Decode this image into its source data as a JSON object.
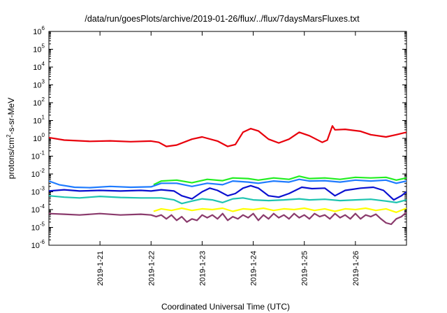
{
  "chart_data": {
    "type": "line",
    "title": "/data/run/goesPlots/archive/2019-01-26/flux/../flux/7daysMarsFluxes.txt",
    "xlabel": "Coordinated Universal Time (UTC)",
    "ylabel_parts": [
      "protons/cm",
      "2",
      "-s-sr-MeV"
    ],
    "y_scale": "log",
    "ylim": [
      1e-06,
      1000000.0
    ],
    "xlim": [
      20.0,
      27.0
    ],
    "y_tick_exponents": [
      -6,
      -5,
      -4,
      -3,
      -2,
      -1,
      0,
      1,
      2,
      3,
      4,
      5,
      6
    ],
    "y_tick_base": "10",
    "x_ticks": [
      {
        "x": 21,
        "label": "2019-1-21"
      },
      {
        "x": 22,
        "label": "2019-1-22"
      },
      {
        "x": 23,
        "label": "2019-1-23"
      },
      {
        "x": 24,
        "label": "2019-1-24"
      },
      {
        "x": 25,
        "label": "2019-1-25"
      },
      {
        "x": 26,
        "label": "2019-1-26"
      }
    ],
    "grid": false,
    "series": [
      {
        "color": "#e8000b",
        "points": [
          [
            20.0,
            1.1
          ],
          [
            20.3,
            0.8
          ],
          [
            20.8,
            0.68
          ],
          [
            21.2,
            0.72
          ],
          [
            21.6,
            0.65
          ],
          [
            22.0,
            0.7
          ],
          [
            22.15,
            0.6
          ],
          [
            22.3,
            0.35
          ],
          [
            22.5,
            0.42
          ],
          [
            22.8,
            0.9
          ],
          [
            23.0,
            1.2
          ],
          [
            23.3,
            0.7
          ],
          [
            23.5,
            0.35
          ],
          [
            23.65,
            0.45
          ],
          [
            23.8,
            2.2
          ],
          [
            23.95,
            3.5
          ],
          [
            24.1,
            2.6
          ],
          [
            24.3,
            0.9
          ],
          [
            24.5,
            0.55
          ],
          [
            24.7,
            0.9
          ],
          [
            24.9,
            2.2
          ],
          [
            25.1,
            1.4
          ],
          [
            25.35,
            0.6
          ],
          [
            25.45,
            0.8
          ],
          [
            25.55,
            5.0
          ],
          [
            25.6,
            3.0
          ],
          [
            25.8,
            3.2
          ],
          [
            26.1,
            2.5
          ],
          [
            26.3,
            1.6
          ],
          [
            26.6,
            1.2
          ],
          [
            26.8,
            1.6
          ],
          [
            27.0,
            2.2
          ]
        ]
      },
      {
        "color": "#22ee22",
        "points": [
          [
            22.05,
            0.0025
          ],
          [
            22.2,
            0.004
          ],
          [
            22.5,
            0.0045
          ],
          [
            22.8,
            0.0032
          ],
          [
            23.1,
            0.005
          ],
          [
            23.4,
            0.0042
          ],
          [
            23.6,
            0.006
          ],
          [
            23.9,
            0.0055
          ],
          [
            24.1,
            0.0045
          ],
          [
            24.4,
            0.006
          ],
          [
            24.7,
            0.005
          ],
          [
            24.9,
            0.0075
          ],
          [
            25.1,
            0.0055
          ],
          [
            25.4,
            0.006
          ],
          [
            25.7,
            0.005
          ],
          [
            26.0,
            0.0065
          ],
          [
            26.3,
            0.006
          ],
          [
            26.6,
            0.0065
          ],
          [
            26.8,
            0.0045
          ],
          [
            27.0,
            0.006
          ]
        ]
      },
      {
        "color": "#1f7bff",
        "points": [
          [
            20.0,
            0.004
          ],
          [
            20.2,
            0.0025
          ],
          [
            20.5,
            0.0018
          ],
          [
            20.8,
            0.0017
          ],
          [
            21.2,
            0.002
          ],
          [
            21.6,
            0.0018
          ],
          [
            22.0,
            0.0019
          ],
          [
            22.2,
            0.003
          ],
          [
            22.5,
            0.003
          ],
          [
            22.8,
            0.002
          ],
          [
            23.1,
            0.003
          ],
          [
            23.4,
            0.0025
          ],
          [
            23.6,
            0.004
          ],
          [
            23.9,
            0.0035
          ],
          [
            24.1,
            0.003
          ],
          [
            24.4,
            0.004
          ],
          [
            24.7,
            0.0035
          ],
          [
            24.9,
            0.005
          ],
          [
            25.1,
            0.004
          ],
          [
            25.4,
            0.0042
          ],
          [
            25.7,
            0.0035
          ],
          [
            26.0,
            0.0045
          ],
          [
            26.3,
            0.004
          ],
          [
            26.6,
            0.0045
          ],
          [
            26.8,
            0.003
          ],
          [
            27.0,
            0.004
          ]
        ]
      },
      {
        "color": "#0a10d0",
        "points": [
          [
            20.0,
            0.0011
          ],
          [
            20.3,
            0.0013
          ],
          [
            20.6,
            0.0011
          ],
          [
            21.0,
            0.0012
          ],
          [
            21.4,
            0.0011
          ],
          [
            21.8,
            0.0012
          ],
          [
            22.0,
            0.0011
          ],
          [
            22.2,
            0.0013
          ],
          [
            22.45,
            0.0011
          ],
          [
            22.6,
            0.0006
          ],
          [
            22.8,
            0.0004
          ],
          [
            23.0,
            0.001
          ],
          [
            23.15,
            0.0016
          ],
          [
            23.3,
            0.0012
          ],
          [
            23.5,
            0.0006
          ],
          [
            23.65,
            0.0008
          ],
          [
            23.8,
            0.0016
          ],
          [
            23.95,
            0.0022
          ],
          [
            24.1,
            0.0016
          ],
          [
            24.3,
            0.0006
          ],
          [
            24.5,
            0.0005
          ],
          [
            24.7,
            0.0008
          ],
          [
            24.95,
            0.0018
          ],
          [
            25.15,
            0.0015
          ],
          [
            25.4,
            0.0016
          ],
          [
            25.6,
            0.0006
          ],
          [
            25.8,
            0.0012
          ],
          [
            26.1,
            0.0016
          ],
          [
            26.35,
            0.0018
          ],
          [
            26.55,
            0.0012
          ],
          [
            26.75,
            0.00035
          ],
          [
            26.9,
            0.0006
          ],
          [
            27.0,
            0.001
          ]
        ]
      },
      {
        "color": "#1ec4b0",
        "points": [
          [
            20.0,
            0.0006
          ],
          [
            20.3,
            0.0005
          ],
          [
            20.6,
            0.00045
          ],
          [
            21.0,
            0.00055
          ],
          [
            21.4,
            0.00048
          ],
          [
            21.8,
            0.00045
          ],
          [
            22.0,
            0.00045
          ],
          [
            22.2,
            0.00045
          ],
          [
            22.45,
            0.00035
          ],
          [
            22.6,
            0.00022
          ],
          [
            22.8,
            0.0003
          ],
          [
            23.0,
            0.0004
          ],
          [
            23.2,
            0.00035
          ],
          [
            23.4,
            0.00025
          ],
          [
            23.6,
            0.0004
          ],
          [
            23.8,
            0.00045
          ],
          [
            24.0,
            0.00035
          ],
          [
            24.3,
            0.00032
          ],
          [
            24.6,
            0.00035
          ],
          [
            24.9,
            0.0004
          ],
          [
            25.1,
            0.00035
          ],
          [
            25.4,
            0.00038
          ],
          [
            25.7,
            0.00032
          ],
          [
            26.0,
            0.00035
          ],
          [
            26.3,
            0.00038
          ],
          [
            26.6,
            0.0003
          ],
          [
            26.8,
            0.00025
          ],
          [
            27.0,
            0.00035
          ]
        ]
      },
      {
        "color": "#ffff00",
        "points": [
          [
            22.05,
            8e-05
          ],
          [
            22.2,
            0.00011
          ],
          [
            22.4,
            9e-05
          ],
          [
            22.6,
            0.00012
          ],
          [
            22.8,
            9e-05
          ],
          [
            23.0,
            0.00011
          ],
          [
            23.2,
            0.0001
          ],
          [
            23.4,
            0.00012
          ],
          [
            23.6,
            8e-05
          ],
          [
            23.8,
            0.00011
          ],
          [
            24.0,
            0.0001
          ],
          [
            24.2,
            0.00012
          ],
          [
            24.4,
            9e-05
          ],
          [
            24.6,
            0.00011
          ],
          [
            24.8,
            0.0001
          ],
          [
            25.0,
            0.00012
          ],
          [
            25.2,
            9e-05
          ],
          [
            25.4,
            0.00011
          ],
          [
            25.6,
            8e-05
          ],
          [
            25.8,
            0.00011
          ],
          [
            26.0,
            0.0001
          ],
          [
            26.2,
            0.00012
          ],
          [
            26.4,
            9e-05
          ],
          [
            26.6,
            0.00011
          ],
          [
            26.8,
            7e-05
          ],
          [
            27.0,
            0.00012
          ]
        ]
      },
      {
        "color": "#8a3a6c",
        "points": [
          [
            20.0,
            6e-05
          ],
          [
            20.3,
            5.5e-05
          ],
          [
            20.6,
            5e-05
          ],
          [
            21.0,
            6e-05
          ],
          [
            21.4,
            5e-05
          ],
          [
            21.8,
            5.5e-05
          ],
          [
            22.0,
            5e-05
          ],
          [
            22.1,
            4e-05
          ],
          [
            22.2,
            5e-05
          ],
          [
            22.3,
            3e-05
          ],
          [
            22.4,
            5e-05
          ],
          [
            22.5,
            2.5e-05
          ],
          [
            22.6,
            4e-05
          ],
          [
            22.7,
            2e-05
          ],
          [
            22.8,
            3e-05
          ],
          [
            22.9,
            2.5e-05
          ],
          [
            23.0,
            5e-05
          ],
          [
            23.1,
            3.5e-05
          ],
          [
            23.2,
            5e-05
          ],
          [
            23.3,
            3e-05
          ],
          [
            23.4,
            6e-05
          ],
          [
            23.5,
            2.5e-05
          ],
          [
            23.6,
            4e-05
          ],
          [
            23.7,
            3e-05
          ],
          [
            23.8,
            5e-05
          ],
          [
            23.9,
            3.5e-05
          ],
          [
            24.0,
            6e-05
          ],
          [
            24.1,
            2.5e-05
          ],
          [
            24.2,
            5e-05
          ],
          [
            24.3,
            3e-05
          ],
          [
            24.4,
            6e-05
          ],
          [
            24.5,
            3.5e-05
          ],
          [
            24.6,
            5e-05
          ],
          [
            24.7,
            3e-05
          ],
          [
            24.8,
            6e-05
          ],
          [
            24.9,
            3.5e-05
          ],
          [
            25.0,
            5e-05
          ],
          [
            25.1,
            3e-05
          ],
          [
            25.2,
            6e-05
          ],
          [
            25.3,
            4e-05
          ],
          [
            25.4,
            5e-05
          ],
          [
            25.5,
            3e-05
          ],
          [
            25.6,
            6e-05
          ],
          [
            25.7,
            3.5e-05
          ],
          [
            25.8,
            5e-05
          ],
          [
            25.9,
            3e-05
          ],
          [
            26.0,
            6e-05
          ],
          [
            26.1,
            3e-05
          ],
          [
            26.2,
            5e-05
          ],
          [
            26.3,
            4e-05
          ],
          [
            26.4,
            5.5e-05
          ],
          [
            26.5,
            3e-05
          ],
          [
            26.6,
            1.8e-05
          ],
          [
            26.7,
            1.5e-05
          ],
          [
            26.8,
            3e-05
          ],
          [
            26.9,
            4e-05
          ],
          [
            27.0,
            7e-05
          ]
        ]
      }
    ]
  }
}
